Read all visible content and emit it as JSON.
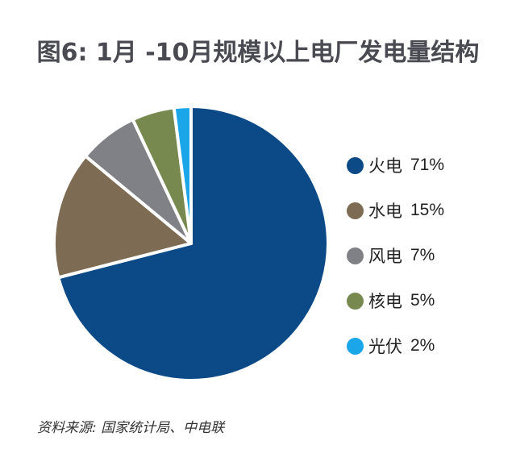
{
  "chart_data": {
    "type": "pie",
    "title": "图6: 1月 -10月规模以上电厂发电量结构",
    "categories": [
      "火电",
      "水电",
      "风电",
      "核电",
      "光伏"
    ],
    "values": [
      71,
      15,
      7,
      5,
      2
    ],
    "value_labels": [
      "71%",
      "15%",
      "7%",
      "5%",
      "2%"
    ],
    "colors": [
      "#0b4a87",
      "#7d6b54",
      "#808186",
      "#77894f",
      "#1aa6e8"
    ],
    "start_angle": "12 o'clock",
    "direction": "clockwise",
    "legend_position": "right",
    "source": "资料来源: 国家统计局、中电联"
  },
  "title": "图6: 1月 -10月规模以上电厂发电量结构",
  "legend": [
    {
      "label": "火电",
      "value": "71%",
      "color": "#0b4a87"
    },
    {
      "label": "水电",
      "value": "15%",
      "color": "#7d6b54"
    },
    {
      "label": "风电",
      "value": "7%",
      "color": "#808186"
    },
    {
      "label": "核电",
      "value": "5%",
      "color": "#77894f"
    },
    {
      "label": "光伏",
      "value": "2%",
      "color": "#1aa6e8"
    }
  ],
  "source": "资料来源: 国家统计局、中电联"
}
